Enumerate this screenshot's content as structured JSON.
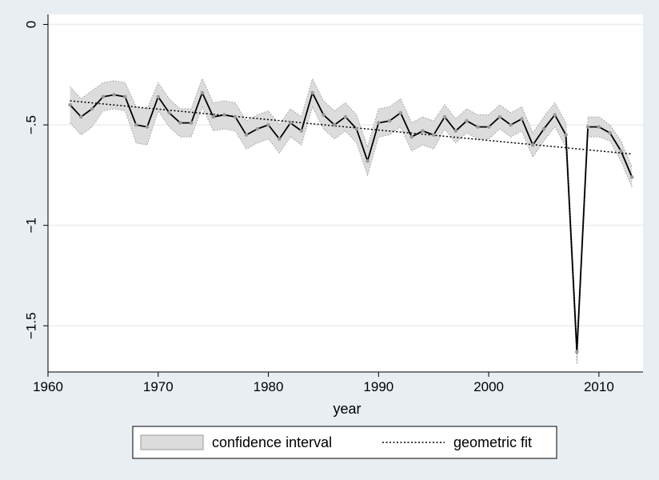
{
  "chart_data": {
    "type": "line",
    "xlabel": "year",
    "ylabel": "",
    "xlim": [
      1960,
      2014
    ],
    "ylim": [
      -1.73,
      0.05
    ],
    "x_ticks": [
      1960,
      1970,
      1980,
      1990,
      2000,
      2010
    ],
    "y_ticks": [
      0,
      -0.5,
      -1,
      -1.5
    ],
    "y_tick_labels": [
      "0",
      "-.5",
      "-1",
      "-1.5"
    ],
    "grid": true,
    "legend_position": "bottom",
    "colors": {
      "page_background": "#e8eef2",
      "plot_background": "#ffffff",
      "grid": "#e8eef2",
      "line": "#000000",
      "marker": "#9a9a9a",
      "band": "#dcdcdc",
      "band_edge": "#9a9a9a"
    },
    "legend": [
      {
        "label": "confidence interval",
        "kind": "band"
      },
      {
        "label": "geometric fit",
        "kind": "dotted-line"
      }
    ],
    "series": [
      {
        "kind": "estimate",
        "x": [
          1962,
          1963,
          1964,
          1965,
          1966,
          1967,
          1968,
          1969,
          1970,
          1971,
          1972,
          1973,
          1974,
          1975,
          1976,
          1977,
          1978,
          1979,
          1980,
          1981,
          1982,
          1983,
          1984,
          1985,
          1986,
          1987,
          1988,
          1989,
          1990,
          1991,
          1992,
          1993,
          1994,
          1995,
          1996,
          1997,
          1998,
          1999,
          2000,
          2001,
          2002,
          2003,
          2004,
          2005,
          2006,
          2007,
          2008,
          2009,
          2010,
          2011,
          2012,
          2013
        ],
        "y": [
          -0.4,
          -0.46,
          -0.42,
          -0.36,
          -0.35,
          -0.36,
          -0.5,
          -0.51,
          -0.36,
          -0.44,
          -0.49,
          -0.49,
          -0.34,
          -0.46,
          -0.45,
          -0.46,
          -0.55,
          -0.52,
          -0.5,
          -0.57,
          -0.49,
          -0.53,
          -0.34,
          -0.45,
          -0.5,
          -0.46,
          -0.52,
          -0.68,
          -0.49,
          -0.48,
          -0.44,
          -0.56,
          -0.53,
          -0.55,
          -0.46,
          -0.53,
          -0.48,
          -0.51,
          -0.51,
          -0.46,
          -0.5,
          -0.47,
          -0.6,
          -0.52,
          -0.45,
          -0.55,
          -1.63,
          -0.51,
          -0.51,
          -0.54,
          -0.63,
          -0.76
        ],
        "ci_half_width": [
          0.09,
          0.09,
          0.09,
          0.07,
          0.07,
          0.07,
          0.09,
          0.09,
          0.07,
          0.07,
          0.07,
          0.07,
          0.07,
          0.07,
          0.07,
          0.07,
          0.07,
          0.07,
          0.07,
          0.07,
          0.07,
          0.07,
          0.07,
          0.07,
          0.07,
          0.07,
          0.07,
          0.07,
          0.07,
          0.07,
          0.07,
          0.07,
          0.07,
          0.07,
          0.06,
          0.06,
          0.06,
          0.06,
          0.06,
          0.06,
          0.06,
          0.06,
          0.06,
          0.06,
          0.06,
          0.06,
          0.06,
          0.05,
          0.05,
          0.04,
          0.05,
          0.05
        ]
      },
      {
        "kind": "fit",
        "x": [
          1962,
          2013
        ],
        "y": [
          -0.38,
          -0.645
        ]
      }
    ]
  }
}
